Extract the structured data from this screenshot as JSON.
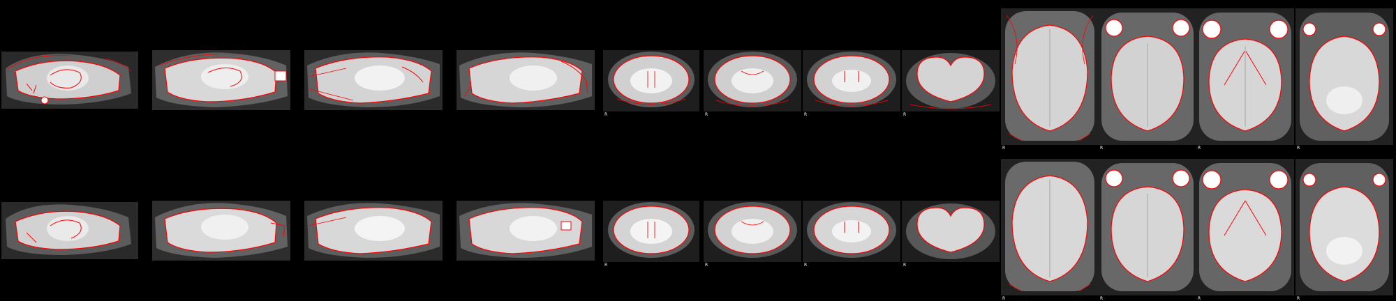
{
  "figure": {
    "background": "#000000",
    "contour_color": "#ff0000",
    "tissue_colors": {
      "brain": "#d6d6d6",
      "brain_inner": "#f0f0f0",
      "skull": "#6e6e6e",
      "dark": "#222222"
    },
    "orientation_label": "R",
    "rows": [
      {
        "name": "row-1",
        "slices": [
          {
            "view": "sagittal"
          },
          {
            "view": "sagittal"
          },
          {
            "view": "sagittal"
          },
          {
            "view": "sagittal"
          },
          {
            "view": "coronal",
            "label": "R"
          },
          {
            "view": "coronal",
            "label": "R"
          },
          {
            "view": "coronal",
            "label": "R"
          },
          {
            "view": "coronal",
            "label": "R"
          },
          {
            "view": "axial",
            "label": "R"
          },
          {
            "view": "axial",
            "label": "R"
          },
          {
            "view": "axial",
            "label": "R"
          },
          {
            "view": "axial",
            "label": "R"
          }
        ]
      },
      {
        "name": "row-2",
        "slices": [
          {
            "view": "sagittal"
          },
          {
            "view": "sagittal"
          },
          {
            "view": "sagittal"
          },
          {
            "view": "sagittal"
          },
          {
            "view": "coronal",
            "label": "R"
          },
          {
            "view": "coronal",
            "label": "R"
          },
          {
            "view": "coronal",
            "label": "R"
          },
          {
            "view": "coronal",
            "label": "R"
          },
          {
            "view": "axial",
            "label": "R"
          },
          {
            "view": "axial",
            "label": "R"
          },
          {
            "view": "axial",
            "label": "R"
          },
          {
            "view": "axial",
            "label": "R"
          }
        ]
      }
    ]
  }
}
